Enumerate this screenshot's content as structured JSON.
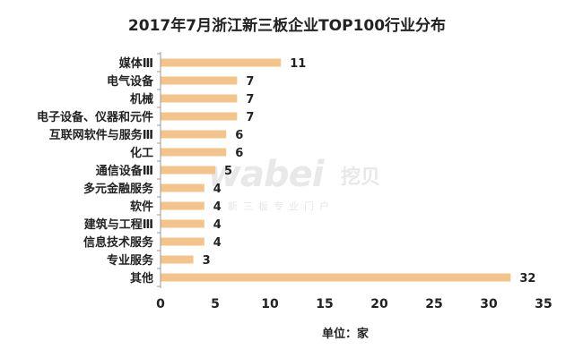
{
  "chart_data": {
    "type": "bar",
    "orientation": "horizontal",
    "title": "2017年7月浙江新三板企业TOP100行业分布",
    "xlabel": "单位：家",
    "categories": [
      "媒体Ⅲ",
      "电气设备",
      "机械",
      "电子设备、仪器和元件",
      "互联网软件与服务Ⅲ",
      "化工",
      "通信设备Ⅲ",
      "多元金融服务",
      "软件",
      "建筑与工程Ⅲ",
      "信息技术服务",
      "专业服务",
      "其他"
    ],
    "values": [
      11,
      7,
      7,
      7,
      6,
      6,
      5,
      4,
      4,
      4,
      4,
      3,
      32
    ],
    "xlim": [
      0,
      35
    ],
    "xticks": [
      0,
      5,
      10,
      15,
      20,
      25,
      30,
      35
    ],
    "grid": false,
    "legend": false,
    "data_labels": true,
    "bar_color": "#F3C48C",
    "axis_color": "#999999",
    "text_color": "#222222"
  },
  "watermark": {
    "main": "wabei",
    "brand": "挖贝",
    "sub": "新三板专业门户"
  }
}
